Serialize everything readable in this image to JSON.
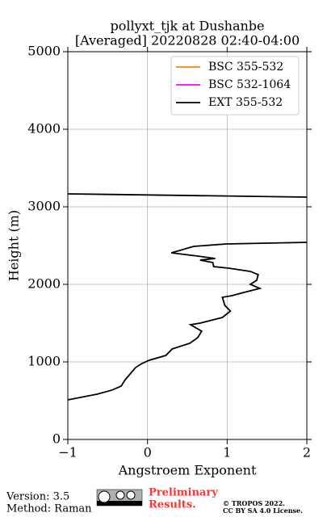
{
  "chart_data": {
    "type": "profile",
    "title_lines": [
      "pollyxt_tjk at Dushanbe",
      "[Averaged] 20220828 02:40-04:00"
    ],
    "xlabel": "Angstroem Exponent",
    "ylabel": "Height (m)",
    "xlim": [
      -1,
      2
    ],
    "ylim": [
      0,
      5000
    ],
    "xticks": [
      {
        "value": -1,
        "label": "−1"
      },
      0,
      1,
      2
    ],
    "yticks": [
      0,
      1000,
      2000,
      3000,
      4000,
      5000
    ],
    "grid": true,
    "legend": "upper right",
    "y": [
      510,
      583,
      635,
      688,
      771,
      854,
      927,
      979,
      1021,
      1083,
      1167,
      1240,
      1313,
      1396,
      1479,
      1500,
      1573,
      1656,
      1729,
      1833,
      1854,
      1896,
      1948,
      2000,
      2052,
      2125,
      2167,
      2208,
      2229,
      2281,
      2313,
      2333,
      2365,
      2406,
      2490,
      2521,
      2542,
      null,
      3167,
      3125
    ],
    "series": [
      {
        "name": "BSC 355-532",
        "color": "#ff7f0e"
      },
      {
        "name": "BSC 532-1064",
        "color": "#ff00ff"
      },
      {
        "name": "EXT 355-532",
        "color": "#000000",
        "values": [
          -1.0,
          -0.635,
          -0.45,
          -0.33,
          -0.28,
          -0.21,
          -0.15,
          -0.07,
          0.02,
          0.23,
          0.31,
          0.53,
          0.63,
          0.68,
          0.54,
          0.66,
          0.94,
          1.04,
          0.97,
          0.94,
          1.06,
          1.21,
          1.41,
          1.29,
          1.37,
          1.39,
          1.29,
          1.02,
          0.83,
          0.82,
          0.66,
          0.85,
          0.63,
          0.3,
          0.58,
          0.99,
          2.0,
          null,
          -1.0,
          2.0
        ]
      }
    ]
  },
  "footer": {
    "version": "Version: 3.5",
    "method": "Method: Raman",
    "notice_lines": [
      "Preliminary",
      "Results."
    ],
    "license_lines": [
      "© TROPOS 2022.",
      "CC BY SA 4.0 License."
    ]
  }
}
